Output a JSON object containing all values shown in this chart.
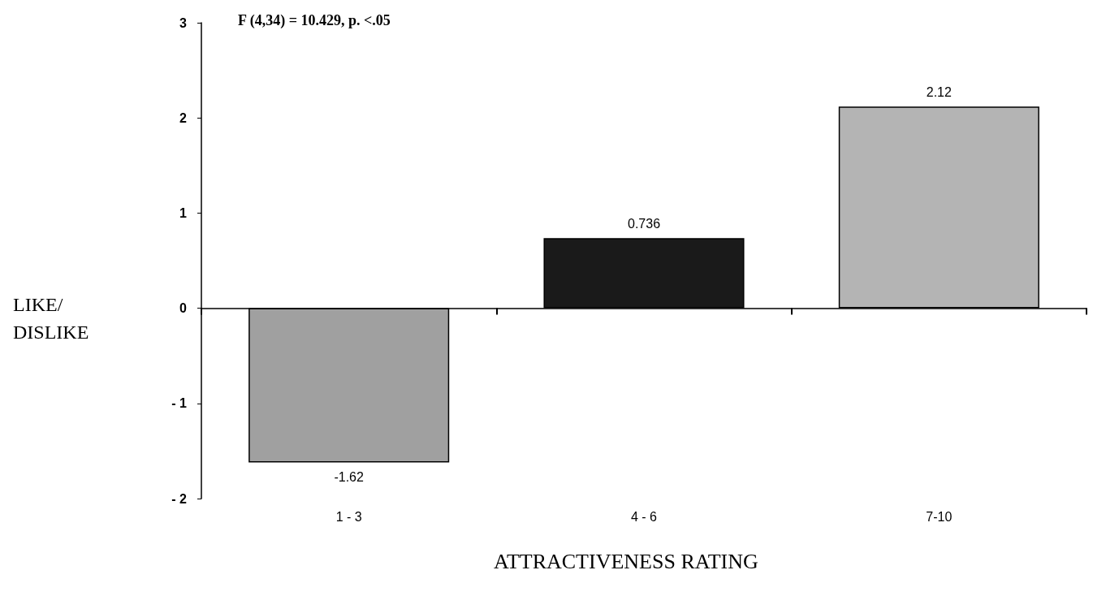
{
  "chart_data": {
    "type": "bar",
    "xlabel": "ATTRACTIVENESS RATING",
    "ylabel": "LIKE/\nDISLIKE",
    "categories": [
      "1 - 3",
      "4 - 6",
      "7-10"
    ],
    "values": [
      -1.62,
      0.736,
      2.12
    ],
    "colors": [
      "#a0a0a0",
      "#1a1a1a",
      "#b4b4b4"
    ],
    "data_labels": true,
    "ylim": [
      -2,
      3
    ],
    "yticks": [
      {
        "value": -2,
        "label": "- 2"
      },
      {
        "value": -1,
        "label": "- 1"
      },
      0,
      1,
      2,
      3
    ],
    "annotations": [
      "F (4,34) = 10.429, p. <.05"
    ]
  }
}
